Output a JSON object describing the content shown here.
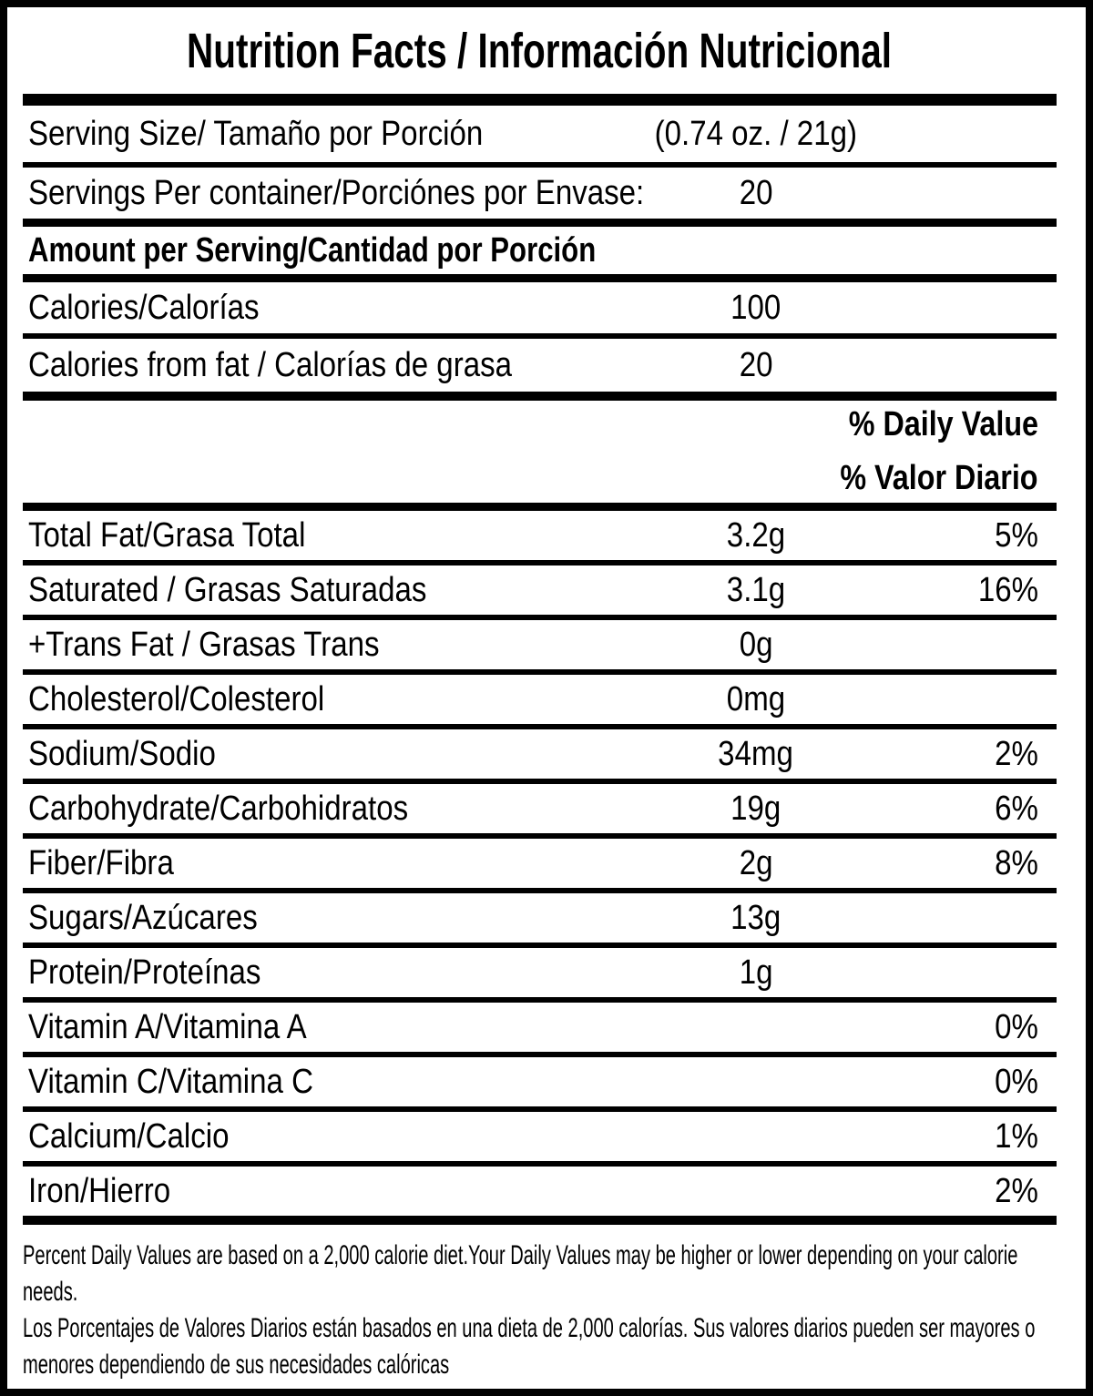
{
  "title": "Nutrition Facts / Información Nutricional",
  "serving": {
    "size_label": "Serving Size/ Tamaño por Porción",
    "size_value": "(0.74 oz. / 21g)",
    "per_container_label": "Servings Per container/Porciónes por Envase:",
    "per_container_value": "20"
  },
  "section_header": "Amount per Serving/Cantidad por Porción",
  "calories": {
    "label": "Calories/Calorías",
    "value": "100"
  },
  "calories_from_fat": {
    "label": "Calories from fat / Calorías de grasa",
    "value": "20"
  },
  "daily_value_header": {
    "en": "% Daily Value",
    "es": "% Valor Diario"
  },
  "nutrients": [
    {
      "label": "Total Fat/Grasa Total",
      "amount": "3.2g",
      "dv": "5%"
    },
    {
      "label": "Saturated / Grasas Saturadas",
      "amount": "3.1g",
      "dv": "16%"
    },
    {
      "label": "+Trans Fat / Grasas Trans",
      "amount": "0g",
      "dv": ""
    },
    {
      "label": "Cholesterol/Colesterol",
      "amount": "0mg",
      "dv": ""
    },
    {
      "label": "Sodium/Sodio",
      "amount": "34mg",
      "dv": "2%"
    },
    {
      "label": "Carbohydrate/Carbohidratos",
      "amount": "19g",
      "dv": "6%"
    },
    {
      "label": "Fiber/Fibra",
      "amount": "2g",
      "dv": "8%"
    },
    {
      "label": "Sugars/Azúcares",
      "amount": "13g",
      "dv": ""
    },
    {
      "label": "Protein/Proteínas",
      "amount": "1g",
      "dv": ""
    },
    {
      "label": "Vitamin A/Vitamina A",
      "amount": "",
      "dv": "0%"
    },
    {
      "label": "Vitamin C/Vitamina C",
      "amount": "",
      "dv": "0%"
    },
    {
      "label": "Calcium/Calcio",
      "amount": "",
      "dv": "1%"
    },
    {
      "label": "Iron/Hierro",
      "amount": "",
      "dv": "2%"
    }
  ],
  "footnotes": {
    "en": "Percent Daily Values are based on a 2,000 calorie diet.Your Daily Values may be higher or lower depending on your calorie needs.",
    "es": "Los Porcentajes de Valores Diarios están basados en una dieta de 2,000 calorías. Sus valores diarios pueden ser mayores o menores dependiendo de sus necesidades calóricas"
  },
  "colors": {
    "text": "#000000",
    "background": "#ffffff"
  }
}
